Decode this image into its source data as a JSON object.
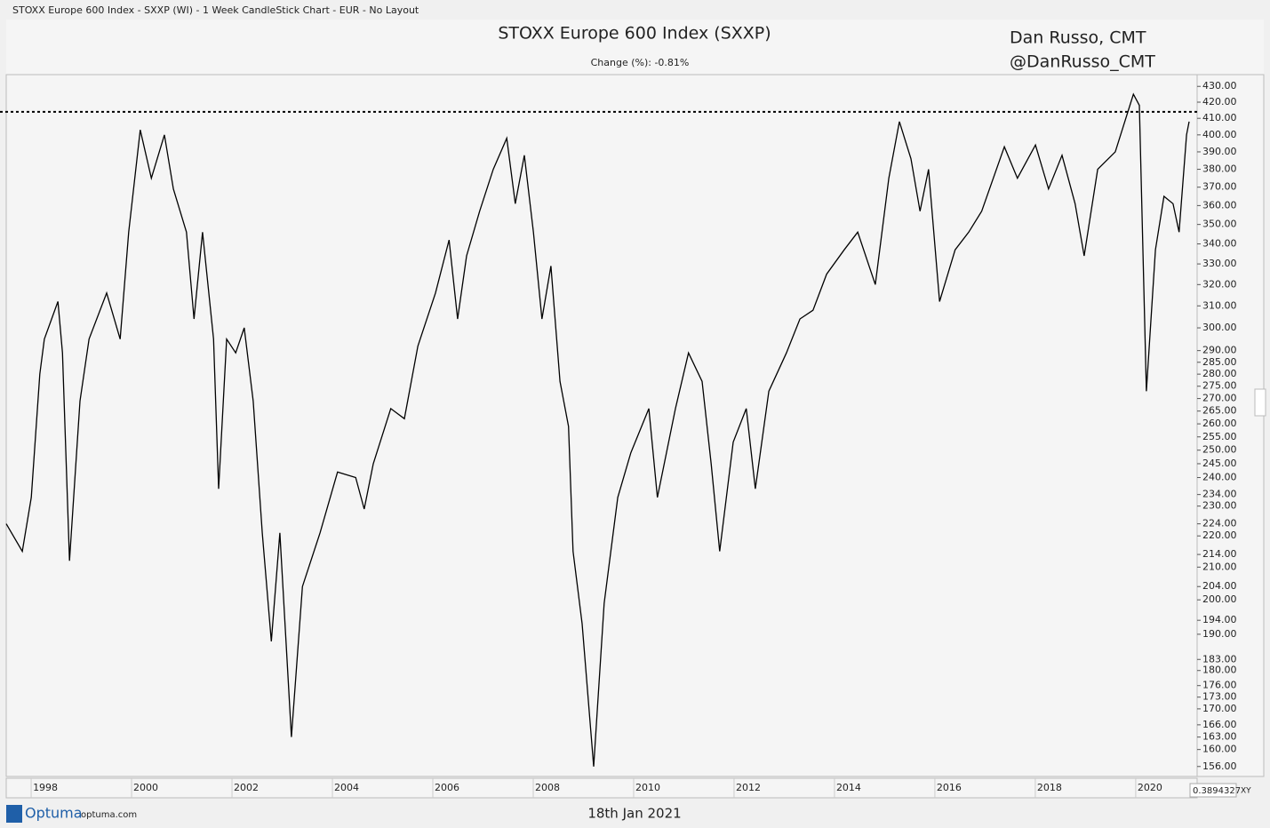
{
  "window_title": "STOXX Europe 600 Index - SXXP (WI) - 1 Week CandleStick Chart - EUR - No Layout",
  "chart_data": {
    "type": "line",
    "title": "STOXX Europe 600 Index (SXXP)",
    "subtitle": "Change (%): -0.81%",
    "annotations": [
      "Dan Russo, CMT",
      "@DanRusso_CMT"
    ],
    "color": "#000000",
    "log_scale": true,
    "reference_line": 414,
    "x": [
      1997.22,
      1997.54,
      1997.72,
      1997.89,
      1997.98,
      1998.25,
      1998.34,
      1998.48,
      1998.69,
      1998.87,
      1999.22,
      1999.49,
      1999.66,
      1999.89,
      2000.11,
      2000.37,
      2000.55,
      2000.81,
      2000.96,
      2001.13,
      2001.35,
      2001.45,
      2001.61,
      2001.79,
      2001.96,
      2002.14,
      2002.32,
      2002.5,
      2002.67,
      2002.9,
      2003.12,
      2003.47,
      2003.82,
      2004.18,
      2004.35,
      2004.53,
      2004.88,
      2005.15,
      2005.42,
      2005.77,
      2006.04,
      2006.21,
      2006.39,
      2006.65,
      2006.92,
      2007.19,
      2007.36,
      2007.54,
      2007.72,
      2007.89,
      2008.07,
      2008.25,
      2008.42,
      2008.51,
      2008.69,
      2008.92,
      2009.13,
      2009.4,
      2009.66,
      2010.02,
      2010.19,
      2010.55,
      2010.81,
      2011.08,
      2011.26,
      2011.43,
      2011.7,
      2011.96,
      2012.14,
      2012.41,
      2012.76,
      2013.03,
      2013.29,
      2013.56,
      2013.91,
      2014.18,
      2014.53,
      2014.8,
      2015.01,
      2015.24,
      2015.42,
      2015.59,
      2015.81,
      2016.12,
      2016.39,
      2016.65,
      2017.1,
      2017.36,
      2017.72,
      2017.98,
      2018.25,
      2018.51,
      2018.69,
      2018.96,
      2019.31,
      2019.67,
      2019.79,
      2019.93,
      2020.11,
      2020.28,
      2020.46,
      2020.58,
      2020.73,
      2020.78
    ],
    "values": [
      224,
      215,
      233,
      280,
      295,
      312,
      289,
      212,
      269,
      295,
      316,
      295,
      346,
      403,
      375,
      400,
      369,
      346,
      304,
      346,
      295,
      236,
      295,
      289,
      300,
      269,
      221,
      188,
      221,
      163,
      204,
      221,
      242,
      240,
      229,
      245,
      266,
      262,
      292,
      316,
      342,
      304,
      334,
      357,
      380,
      398,
      361,
      388,
      346,
      304,
      329,
      277,
      259,
      215,
      193,
      156,
      199,
      233,
      249,
      266,
      233,
      266,
      289,
      277,
      245,
      215,
      253,
      266,
      236,
      273,
      289,
      304,
      308,
      325,
      337,
      346,
      320,
      375,
      408,
      386,
      357,
      380,
      312,
      337,
      346,
      357,
      393,
      375,
      394,
      369,
      388,
      361,
      334,
      380,
      390,
      425,
      418,
      273,
      337,
      365,
      361,
      346,
      400,
      408
    ],
    "xlim": [
      1997.22,
      2020.94
    ],
    "xticks": [
      1998,
      2000,
      2002,
      2004,
      2006,
      2008,
      2010,
      2012,
      2014,
      2016,
      2018,
      2020
    ],
    "ylim": [
      153.7,
      437.6
    ],
    "yticks": [
      {
        "value": 430,
        "label": "430.00"
      },
      {
        "value": 420,
        "label": "420.00"
      },
      {
        "value": 410,
        "label": "410.00"
      },
      {
        "value": 400,
        "label": "400.00"
      },
      {
        "value": 390,
        "label": "390.00"
      },
      {
        "value": 380,
        "label": "380.00"
      },
      {
        "value": 370,
        "label": "370.00"
      },
      {
        "value": 360,
        "label": "360.00"
      },
      {
        "value": 350,
        "label": "350.00"
      },
      {
        "value": 340,
        "label": "340.00"
      },
      {
        "value": 330,
        "label": "330.00"
      },
      {
        "value": 320,
        "label": "320.00"
      },
      {
        "value": 310,
        "label": "310.00"
      },
      {
        "value": 300,
        "label": "300.00"
      },
      {
        "value": 290,
        "label": "290.00"
      },
      {
        "value": 285,
        "label": "285.00"
      },
      {
        "value": 280,
        "label": "280.00"
      },
      {
        "value": 275,
        "label": "275.00"
      },
      {
        "value": 270,
        "label": "270.00"
      },
      {
        "value": 265,
        "label": "265.00"
      },
      {
        "value": 260,
        "label": "260.00"
      },
      {
        "value": 255,
        "label": "255.00"
      },
      {
        "value": 250,
        "label": "250.00"
      },
      {
        "value": 245,
        "label": "245.00"
      },
      {
        "value": 240,
        "label": "240.00"
      },
      {
        "value": 234,
        "label": "234.00"
      },
      {
        "value": 230,
        "label": "230.00"
      },
      {
        "value": 224,
        "label": "224.00"
      },
      {
        "value": 220,
        "label": "220.00"
      },
      {
        "value": 214,
        "label": "214.00"
      },
      {
        "value": 210,
        "label": "210.00"
      },
      {
        "value": 204,
        "label": "204.00"
      },
      {
        "value": 200,
        "label": "200.00"
      },
      {
        "value": 194,
        "label": "194.00"
      },
      {
        "value": 190,
        "label": "190.00"
      },
      {
        "value": 183,
        "label": "183.00"
      },
      {
        "value": 180,
        "label": "180.00"
      },
      {
        "value": 176,
        "label": "176.00"
      },
      {
        "value": 173,
        "label": "173.00"
      },
      {
        "value": 170,
        "label": "170.00"
      },
      {
        "value": 166,
        "label": "166.00"
      },
      {
        "value": 163,
        "label": "163.00"
      },
      {
        "value": 160,
        "label": "160.00"
      },
      {
        "value": 156,
        "label": "156.00"
      }
    ]
  },
  "footer": {
    "brand": "Optuma",
    "site": "optuma.com",
    "date": "18th Jan 2021",
    "cursor_value": "0.3894327",
    "mode": "XY"
  }
}
